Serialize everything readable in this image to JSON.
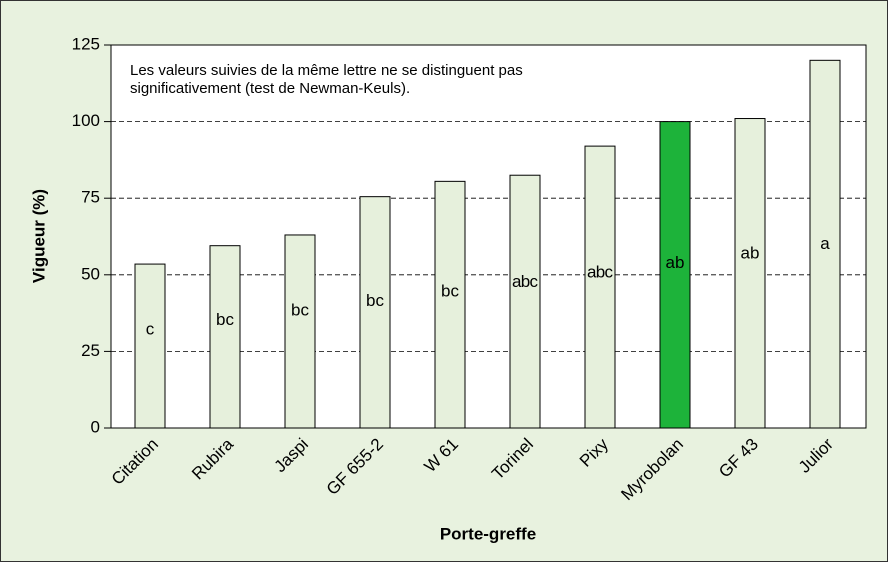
{
  "chart_data": {
    "type": "bar",
    "annotation": [
      "Les valeurs suivies de la même lettre ne se distinguent pas",
      "significativement (test de Newman-Keuls)."
    ],
    "x_label": "Porte-greffe",
    "y_label": "Vigueur (%)",
    "categories": [
      "Citation",
      "Rubira",
      "Jaspi",
      "GF 655-2",
      "W 61",
      "Torinel",
      "Pixy",
      "Myrobolan",
      "GF 43",
      "Julior"
    ],
    "values": [
      53.5,
      59.5,
      63,
      75.5,
      80.5,
      82.5,
      92,
      100,
      101,
      120
    ],
    "groups": [
      "c",
      "bc",
      "bc",
      "bc",
      "bc",
      "abc",
      "abc",
      "ab",
      "ab",
      "a"
    ],
    "colors": [
      "#e6f0dc",
      "#e6f0dc",
      "#e6f0dc",
      "#e6f0dc",
      "#e6f0dc",
      "#e6f0dc",
      "#e6f0dc",
      "#1db33a",
      "#e6f0dc",
      "#e6f0dc"
    ],
    "ylim": [
      0,
      125
    ],
    "yticks": [
      0,
      25,
      50,
      75,
      100,
      125
    ],
    "grid": true
  }
}
